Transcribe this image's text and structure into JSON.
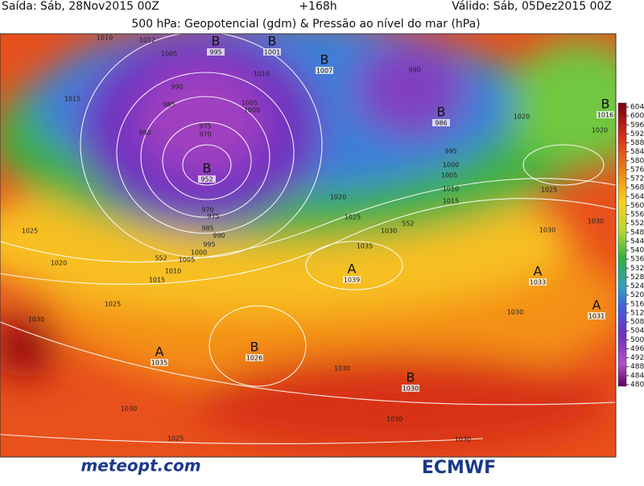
{
  "header": {
    "left": "Saída: Sáb, 28Nov2015 00Z",
    "center": "+168h",
    "right": "Válido: Sáb, 05Dez2015 00Z",
    "title": "500 hPa: Geopotencial (gdm) & Pressão ao nível do mar (hPa)"
  },
  "colorbar": {
    "ticks": [
      604,
      600,
      596,
      592,
      588,
      584,
      580,
      576,
      572,
      568,
      564,
      560,
      556,
      552,
      548,
      544,
      540,
      536,
      532,
      528,
      524,
      520,
      516,
      512,
      508,
      504,
      500,
      496,
      492,
      488,
      484,
      480
    ]
  },
  "pressure_centers": [
    {
      "symbol": "B",
      "value": 995
    },
    {
      "symbol": "B",
      "value": 1001
    },
    {
      "symbol": "B",
      "value": 1007
    },
    {
      "symbol": "B",
      "value": 986
    },
    {
      "symbol": "B",
      "value": 952
    },
    {
      "symbol": "B",
      "value": 1016
    },
    {
      "symbol": "A",
      "value": 1039
    },
    {
      "symbol": "A",
      "value": 1033
    },
    {
      "symbol": "A",
      "value": 1031
    },
    {
      "symbol": "A",
      "value": 1035
    },
    {
      "symbol": "B",
      "value": 1026
    },
    {
      "symbol": "B",
      "value": 1030
    }
  ],
  "isobar_labels": [
    1010,
    1012,
    1005,
    990,
    985,
    980,
    975,
    970,
    1015,
    1010,
    1005,
    1000,
    990,
    995,
    1000,
    1005,
    1010,
    1015,
    1020,
    1025,
    1035,
    1030,
    552,
    1020,
    1025,
    1030,
    1020,
    1025,
    1020,
    1025,
    1015,
    1010,
    1005,
    1000,
    995,
    990,
    985,
    975,
    970,
    552,
    1030,
    1030,
    1030,
    1030,
    1030,
    1030,
    1025,
    1030
  ],
  "logos": {
    "left": "meteopt.com",
    "right": "ECMWF"
  }
}
